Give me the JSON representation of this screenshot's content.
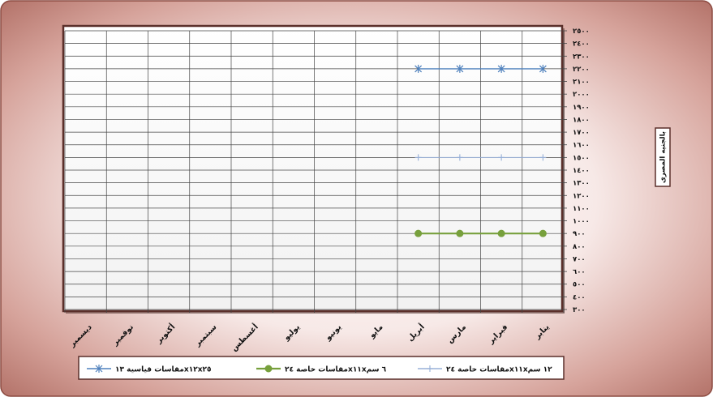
{
  "chart_data": {
    "type": "line",
    "categories": [
      "ينابر",
      "فبراير",
      "مارس",
      "أبريل",
      "مايو",
      "يونيو",
      "يوليو",
      "أغسطس",
      "سبتمبر",
      "أكتوبر",
      "نوفمبر",
      "ديسمبر"
    ],
    "x_direction": "right-to-left",
    "y_ticks": [
      "٣٠٠",
      "٤٠٠",
      "٥٠٠",
      "٦٠٠",
      "٧٠٠",
      "٨٠٠",
      "٩٠٠",
      "١٠٠٠",
      "١١٠٠",
      "١٢٠٠",
      "١٣٠٠",
      "١٤٠٠",
      "١٥٠٠",
      "١٦٠٠",
      "١٧٠٠",
      "١٨٠٠",
      "١٩٠٠",
      "٢٠٠٠",
      "٢١٠٠",
      "٢٢٠٠",
      "٢٣٠٠",
      "٢٤٠٠",
      "٢٥٠٠"
    ],
    "ylim": [
      300,
      2500
    ],
    "ylabel": "بالجنيه المصرى",
    "y_axis_position": "right",
    "grid": true,
    "legend_position": "bottom",
    "series": [
      {
        "name": "مقاسات قياسية ١٣x١٢x٢٥",
        "marker": "asterisk",
        "color": "#4f81bd",
        "values": [
          2200,
          2200,
          2200,
          2200,
          null,
          null,
          null,
          null,
          null,
          null,
          null,
          null
        ]
      },
      {
        "name": "مقاسات خاصة ٢٤x١١x٦ سم",
        "marker": "circle",
        "color": "#77a03c",
        "values": [
          900,
          900,
          900,
          900,
          null,
          null,
          null,
          null,
          null,
          null,
          null,
          null
        ]
      },
      {
        "name": "مقاسات خاصة ٢٤x١١x١٢ سم",
        "marker": "plus",
        "color": "#98b0d8",
        "values": [
          1500,
          1500,
          1500,
          1500,
          null,
          null,
          null,
          null,
          null,
          null,
          null,
          null
        ]
      }
    ]
  }
}
